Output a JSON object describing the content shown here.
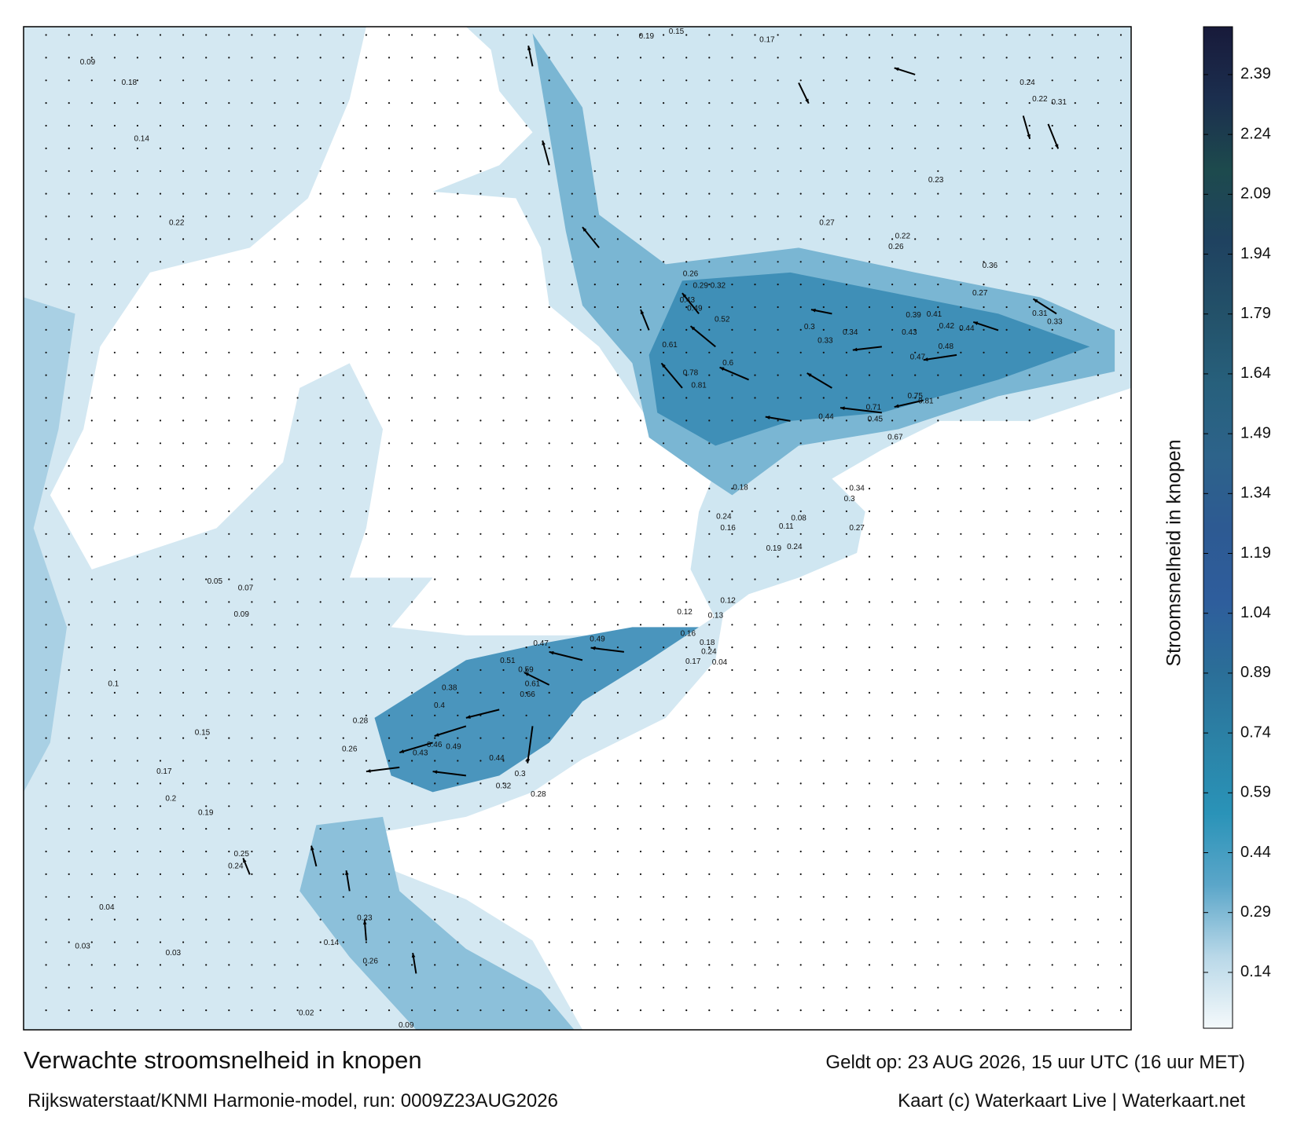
{
  "map": {
    "title": "Verwachte stroomsnelheid in knopen",
    "valid_time": "Geldt op: 23 AUG 2026, 15 uur UTC (16 uur MET)",
    "source": "Rijkswaterstaat/KNMI Harmonie-model, run: 0009Z23AUG2026",
    "credit": "Kaart (c) Waterkaart Live | Waterkaart.net",
    "current_labels": [
      0.71,
      0.81,
      0.75,
      0.52,
      0.61,
      0.6,
      0.78,
      0.81,
      0.45,
      0.67,
      0.44,
      0.3,
      0.34,
      0.33,
      0.48,
      0.47,
      0.44,
      0.42,
      0.39,
      0.41,
      0.43,
      0.27,
      0.36,
      0.31,
      0.33,
      0.26,
      0.49,
      0.43,
      0.32,
      0.29,
      0.61,
      0.66,
      0.59,
      0.51,
      0.4,
      0.38,
      0.43,
      0.46,
      0.49,
      0.44,
      0.26,
      0.28,
      0.47,
      0.49,
      0.32,
      0.28,
      0.3,
      0.09,
      0.18,
      0.14,
      0.22,
      0.17,
      0.2,
      0.19,
      0.25,
      0.24,
      0.23,
      0.14,
      0.26,
      0.1,
      0.15,
      0.09,
      0.07,
      0.05,
      0.04,
      0.03,
      0.03,
      0.02,
      0.09,
      0.17,
      0.15,
      0.19,
      0.24,
      0.31,
      0.22,
      0.23,
      0.26,
      0.22,
      0.27,
      0.27,
      0.3,
      0.34,
      0.19,
      0.24,
      0.08,
      0.11,
      0.18,
      0.24,
      0.16,
      0.12,
      0.13,
      0.18,
      0.24,
      0.17,
      0.04,
      0.16,
      0.12
    ]
  },
  "colorbar": {
    "label": "Stroomsnelheid in knopen",
    "range": [
      0,
      2.51
    ],
    "ticks": [
      0.14,
      0.29,
      0.44,
      0.59,
      0.74,
      0.89,
      1.04,
      1.19,
      1.34,
      1.49,
      1.64,
      1.79,
      1.94,
      2.09,
      2.24,
      2.39
    ],
    "colors": [
      "#f4f9fb",
      "#b9d8e8",
      "#5ba6c9",
      "#2a93b8",
      "#2b82a6",
      "#2b6e98",
      "#2e5d9c",
      "#2d5a92",
      "#2d638a",
      "#27607c",
      "#235169",
      "#1f4260",
      "#1d4a4d",
      "#1b2e4e",
      "#181a3a"
    ]
  }
}
